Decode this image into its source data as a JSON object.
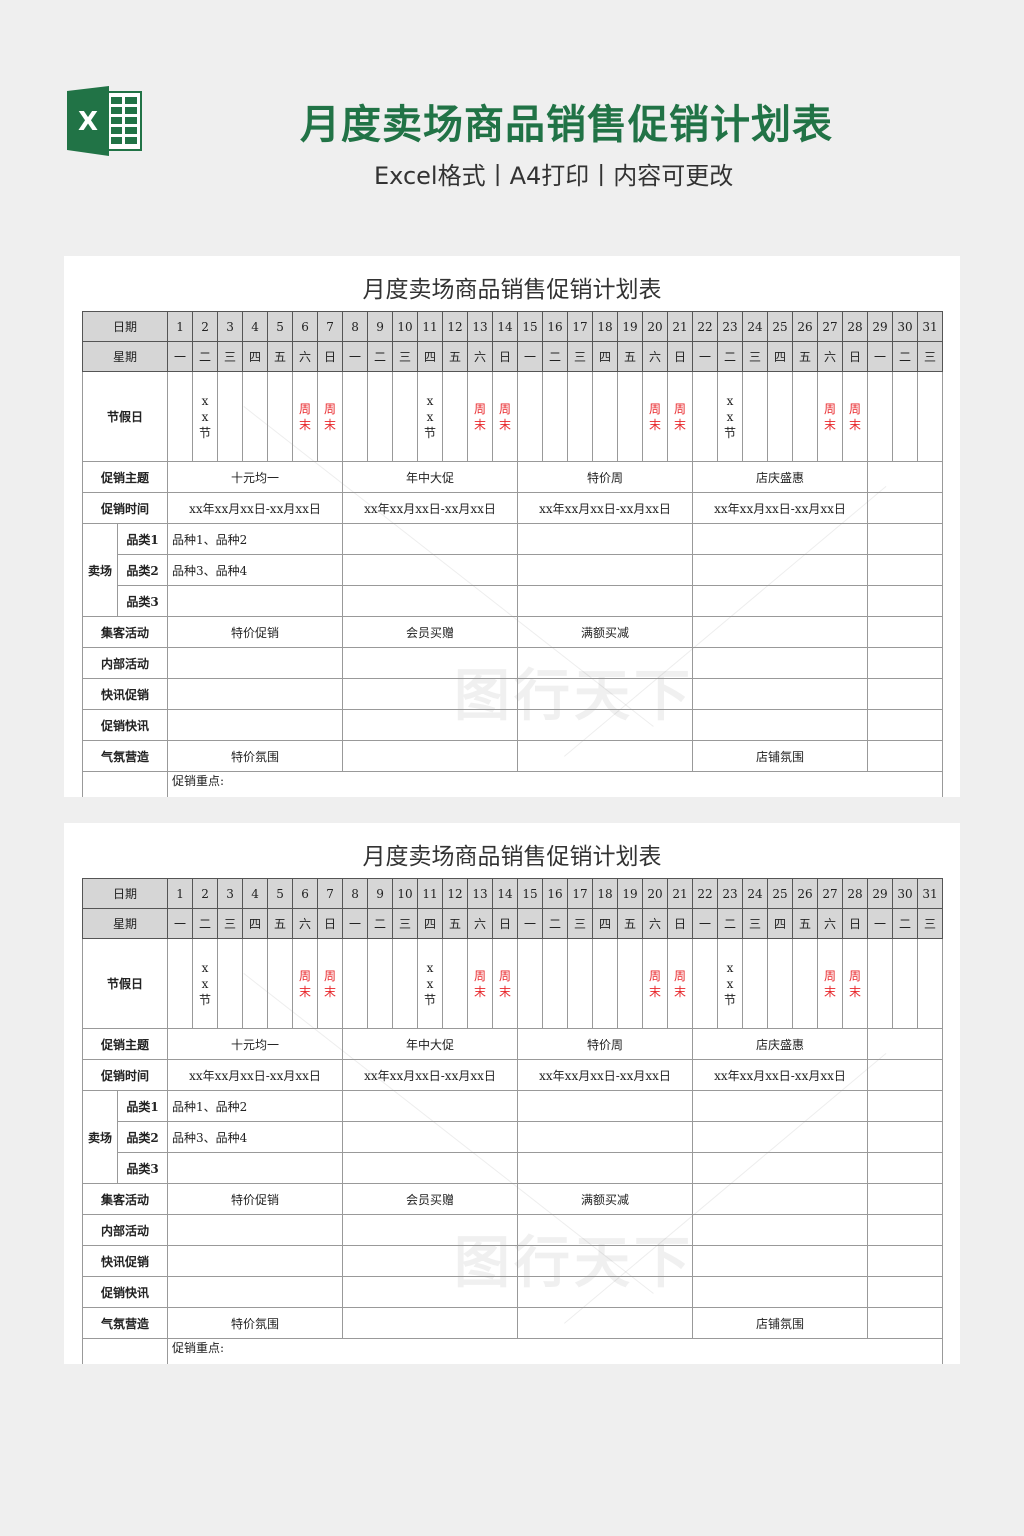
{
  "header": {
    "title": "月度卖场商品销售促销计划表",
    "subtitle": "Excel格式丨A4打印丨内容可更改",
    "logo_icon": "excel-icon",
    "accent_color": "#217346"
  },
  "watermark": "图行天下",
  "sheet": {
    "title": "月度卖场商品销售促销计划表",
    "date_label": "日期",
    "weekday_label": "星期",
    "holiday_label": "节假日",
    "days": [
      "1",
      "2",
      "3",
      "4",
      "5",
      "6",
      "7",
      "8",
      "9",
      "10",
      "11",
      "12",
      "13",
      "14",
      "15",
      "16",
      "17",
      "18",
      "19",
      "20",
      "21",
      "22",
      "23",
      "24",
      "25",
      "26",
      "27",
      "28",
      "29",
      "30",
      "31"
    ],
    "weekdays": [
      "一",
      "二",
      "三",
      "四",
      "五",
      "六",
      "日",
      "一",
      "二",
      "三",
      "四",
      "五",
      "六",
      "日",
      "一",
      "二",
      "三",
      "四",
      "五",
      "六",
      "日",
      "一",
      "二",
      "三",
      "四",
      "五",
      "六",
      "日",
      "一",
      "二",
      "三"
    ],
    "holidays": [
      "",
      "xx 节",
      "",
      "",
      "",
      "周 末",
      "周 末",
      "",
      "",
      "",
      "xx 节",
      "",
      "周 末",
      "周 末",
      "",
      "",
      "",
      "",
      "",
      "周 末",
      "周 末",
      "",
      "xx 节",
      "",
      "",
      "",
      "周 末",
      "周 末",
      "",
      "",
      ""
    ],
    "weekend_color": "#e8262a",
    "rows": [
      {
        "label": "促销主题",
        "cells": [
          "十元均一",
          "年中大促",
          "特价周",
          "店庆盛惠",
          ""
        ]
      },
      {
        "label": "促销时间",
        "cells": [
          "xx年xx月xx日-xx月xx日",
          "xx年xx月xx日-xx月xx日",
          "xx年xx月xx日-xx月xx日",
          "xx年xx月xx日-xx月xx日",
          ""
        ]
      }
    ],
    "store": {
      "label": "卖场",
      "categories": [
        {
          "label": "品类1",
          "cells": [
            "品种1、品种2",
            "",
            "",
            "",
            ""
          ]
        },
        {
          "label": "品类2",
          "cells": [
            "品种3、品种4",
            "",
            "",
            "",
            ""
          ]
        },
        {
          "label": "品类3",
          "cells": [
            "",
            "",
            "",
            "",
            ""
          ]
        }
      ]
    },
    "rows2": [
      {
        "label": "集客活动",
        "cells": [
          "特价促销",
          "会员买赠",
          "满额买减",
          "",
          ""
        ]
      },
      {
        "label": "内部活动",
        "cells": [
          "",
          "",
          "",
          "",
          ""
        ]
      },
      {
        "label": "快讯促销",
        "cells": [
          "",
          "",
          "",
          "",
          ""
        ]
      },
      {
        "label": "促销快讯",
        "cells": [
          "",
          "",
          "",
          "",
          ""
        ]
      },
      {
        "label": "气氛营造",
        "cells": [
          "特价氛围",
          "",
          "",
          "店铺氛围",
          ""
        ]
      }
    ],
    "focus_label": "促销重点:"
  }
}
